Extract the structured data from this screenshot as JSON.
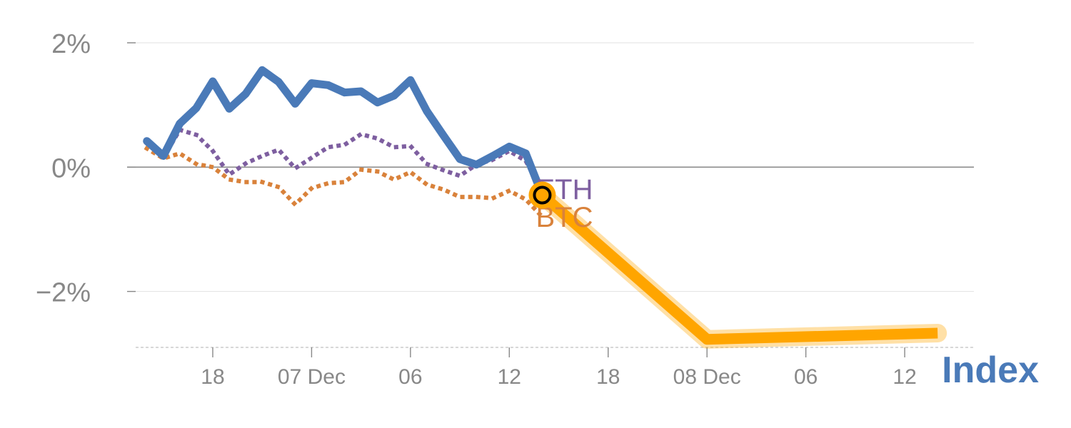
{
  "chart_data": {
    "type": "line",
    "title": "",
    "xlabel": "Index",
    "ylabel": "",
    "ylim": [
      -2.9,
      2.0
    ],
    "y_ticks": [
      {
        "value": 2,
        "label": "2%"
      },
      {
        "value": 0,
        "label": "0%"
      },
      {
        "value": -2,
        "label": "−2%"
      }
    ],
    "x_ticks": [
      {
        "x": 4,
        "label": "18"
      },
      {
        "x": 10,
        "label": "07 Dec"
      },
      {
        "x": 16,
        "label": "06"
      },
      {
        "x": 22,
        "label": "12"
      },
      {
        "x": 28,
        "label": "18"
      },
      {
        "x": 34,
        "label": "08 Dec"
      },
      {
        "x": 40,
        "label": "06"
      },
      {
        "x": 46,
        "label": "12"
      }
    ],
    "xlim": [
      -1.2,
      50.2
    ],
    "grid": true,
    "series": [
      {
        "name": "",
        "style": "solid",
        "color": "#4a7ab8",
        "x": [
          0,
          1,
          2,
          3,
          4,
          5,
          6,
          7,
          8,
          9,
          10,
          11,
          12,
          13,
          14,
          15,
          16,
          17,
          18,
          19,
          20,
          21,
          22,
          23,
          24
        ],
        "values": [
          0.42,
          0.18,
          0.7,
          0.95,
          1.38,
          0.94,
          1.18,
          1.56,
          1.37,
          1.02,
          1.35,
          1.32,
          1.2,
          1.22,
          1.04,
          1.15,
          1.4,
          0.9,
          0.51,
          0.13,
          0.04,
          0.18,
          0.33,
          0.22,
          -0.45
        ]
      },
      {
        "name": "ETH",
        "style": "dotted",
        "color": "#7e5fa0",
        "x": [
          0,
          1,
          2,
          3,
          4,
          5,
          6,
          7,
          8,
          9,
          10,
          11,
          12,
          13,
          14,
          15,
          16,
          17,
          18,
          19,
          20,
          21,
          22,
          23,
          24
        ],
        "values": [
          0.38,
          0.15,
          0.6,
          0.52,
          0.26,
          -0.12,
          0.06,
          0.18,
          0.28,
          -0.02,
          0.15,
          0.32,
          0.36,
          0.53,
          0.46,
          0.32,
          0.34,
          0.05,
          -0.05,
          -0.14,
          0.04,
          0.12,
          0.26,
          0.1,
          -0.4
        ]
      },
      {
        "name": "BTC",
        "style": "dotted",
        "color": "#d9823b",
        "x": [
          0,
          1,
          2,
          3,
          4,
          5,
          6,
          7,
          8,
          9,
          10,
          11,
          12,
          13,
          14,
          15,
          16,
          17,
          18,
          19,
          20,
          21,
          22,
          23,
          24
        ],
        "values": [
          0.3,
          0.14,
          0.22,
          0.05,
          0.0,
          -0.2,
          -0.24,
          -0.24,
          -0.32,
          -0.6,
          -0.34,
          -0.26,
          -0.24,
          -0.04,
          -0.07,
          -0.2,
          -0.08,
          -0.28,
          -0.36,
          -0.48,
          -0.48,
          -0.5,
          -0.38,
          -0.52,
          -0.8
        ]
      },
      {
        "name": "",
        "style": "highlight",
        "color": "#ffa500",
        "x": [
          24,
          34,
          48
        ],
        "values": [
          -0.45,
          -2.77,
          -2.67
        ]
      }
    ],
    "end_labels": [
      {
        "series": "ETH",
        "text": "ETH",
        "color": "#7e5fa0"
      },
      {
        "series": "BTC",
        "text": "BTC",
        "color": "#d9823b"
      }
    ],
    "marker": {
      "x": 24,
      "y": -0.45,
      "fill": "#ffa500",
      "ring": "#000000"
    }
  }
}
